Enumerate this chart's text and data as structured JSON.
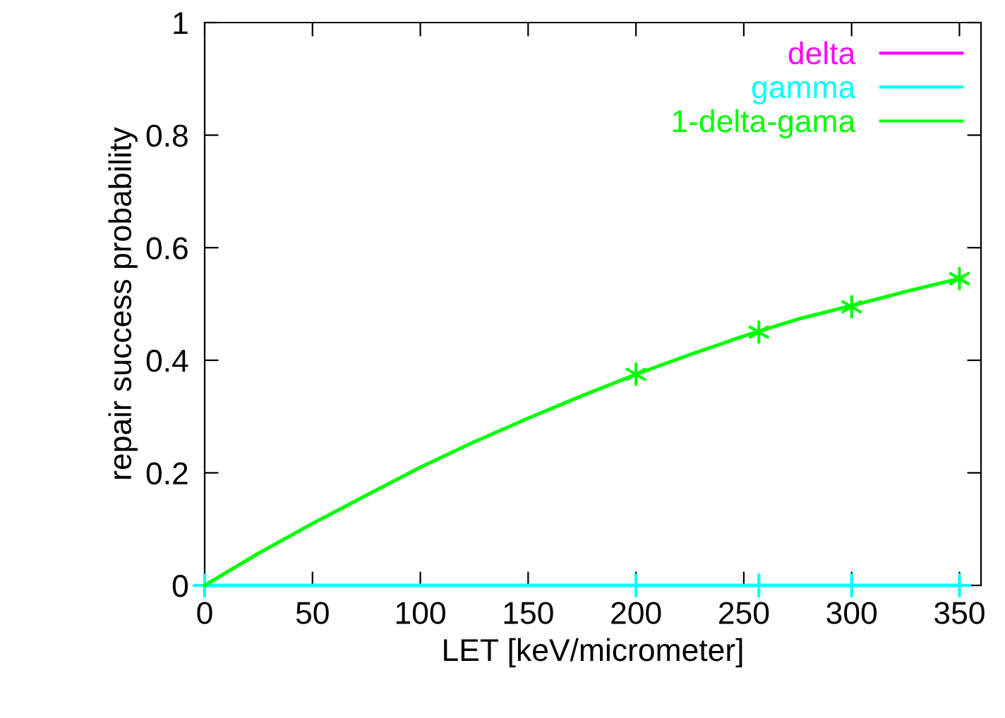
{
  "chart_data": {
    "type": "line",
    "xlabel": "LET [keV/micrometer]",
    "ylabel": "repair success probability",
    "xlim": [
      0,
      360
    ],
    "ylim": [
      0,
      1
    ],
    "xticks": [
      0,
      50,
      100,
      150,
      200,
      250,
      300,
      350
    ],
    "yticks": [
      0,
      {
        "value": 0.2,
        "label": "0.2"
      },
      {
        "value": 0.4,
        "label": "0.4"
      },
      {
        "value": 0.6,
        "label": "0.6"
      },
      {
        "value": 0.8,
        "label": "0.8"
      },
      1
    ],
    "grid": false,
    "legend": "top right",
    "series": [
      {
        "name": "delta",
        "color": "#ff00ff",
        "marker": "none"
      },
      {
        "name": "gamma",
        "color": "#00ffff",
        "marker": "cross",
        "x": [
          0,
          200,
          257,
          300,
          350
        ],
        "values": [
          0,
          0,
          0,
          0,
          0
        ]
      },
      {
        "name": "1-delta-gama",
        "color": "#00ff00",
        "marker": "none",
        "x": [
          0,
          25,
          50,
          75,
          100,
          125,
          150,
          175,
          200,
          225,
          250,
          275,
          300,
          325,
          350
        ],
        "values": [
          0,
          0.057,
          0.11,
          0.16,
          0.21,
          0.255,
          0.297,
          0.337,
          0.375,
          0.41,
          0.443,
          0.473,
          0.497,
          0.522,
          0.545
        ]
      },
      {
        "color": "#00ff00",
        "type": "scatter",
        "marker": "cross",
        "x": [
          200,
          257,
          300,
          350
        ],
        "values": [
          0.375,
          0.45,
          0.495,
          0.545
        ]
      }
    ]
  }
}
